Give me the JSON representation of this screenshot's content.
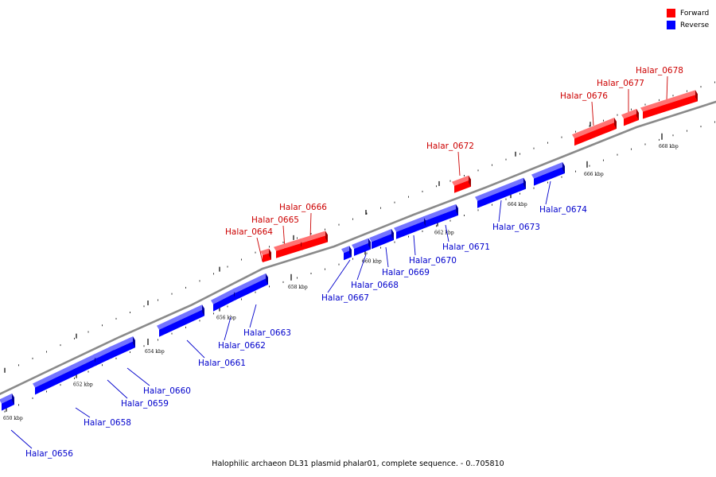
{
  "legend": [
    {
      "label": "Forward",
      "color": "#ff0000"
    },
    {
      "label": "Reverse",
      "color": "#0000ff"
    }
  ],
  "caption": "Halophilic archaeon DL31 plasmid phalar01, complete sequence. - 0..705810",
  "colors": {
    "forward": "#ff0000",
    "reverse": "#0000ff",
    "backbone": "#8a8a8a",
    "forward_label": "#cc0000",
    "reverse_label": "#0000cc"
  },
  "tick_labels": [
    "650 kbp",
    "652 kbp",
    "654 kbp",
    "656 kbp",
    "658 kbp",
    "660 kbp",
    "662 kbp",
    "664 kbp",
    "666 kbp",
    "668 kbp"
  ],
  "genes": [
    {
      "name": "Halar_0656",
      "strand": "reverse"
    },
    {
      "name": "Halar_0658",
      "strand": "reverse"
    },
    {
      "name": "Halar_0659",
      "strand": "reverse"
    },
    {
      "name": "Halar_0660",
      "strand": "reverse"
    },
    {
      "name": "Halar_0661",
      "strand": "reverse"
    },
    {
      "name": "Halar_0662",
      "strand": "reverse"
    },
    {
      "name": "Halar_0663",
      "strand": "reverse"
    },
    {
      "name": "Halar_0664",
      "strand": "forward"
    },
    {
      "name": "Halar_0665",
      "strand": "forward"
    },
    {
      "name": "Halar_0666",
      "strand": "forward"
    },
    {
      "name": "Halar_0667",
      "strand": "reverse"
    },
    {
      "name": "Halar_0668",
      "strand": "reverse"
    },
    {
      "name": "Halar_0669",
      "strand": "reverse"
    },
    {
      "name": "Halar_0670",
      "strand": "reverse"
    },
    {
      "name": "Halar_0671",
      "strand": "reverse"
    },
    {
      "name": "Halar_0672",
      "strand": "forward"
    },
    {
      "name": "Halar_0673",
      "strand": "reverse"
    },
    {
      "name": "Halar_0674",
      "strand": "reverse"
    },
    {
      "name": "Halar_0676",
      "strand": "forward"
    },
    {
      "name": "Halar_0677",
      "strand": "forward"
    },
    {
      "name": "Halar_0678",
      "strand": "forward"
    }
  ]
}
